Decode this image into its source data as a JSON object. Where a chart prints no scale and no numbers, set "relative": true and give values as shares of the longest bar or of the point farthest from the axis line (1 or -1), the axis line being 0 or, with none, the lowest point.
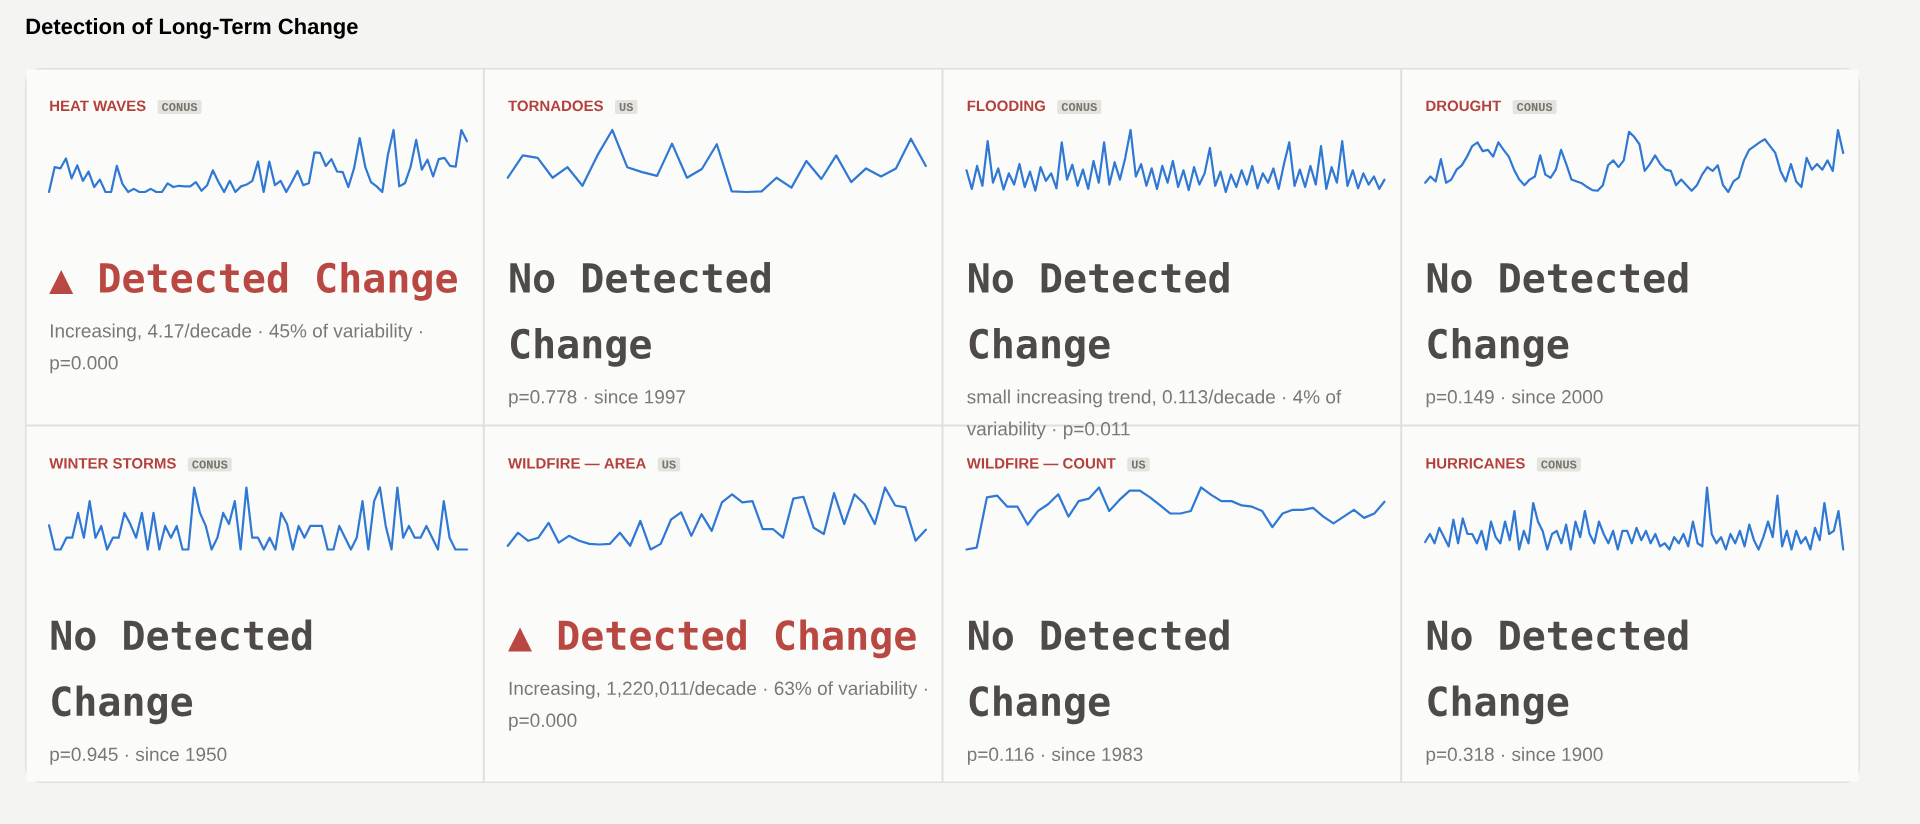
{
  "chart_data": [
    {
      "type": "other",
      "title": "Detection of Long-Term Change"
    },
    {
      "type": "line",
      "relative": true,
      "title": "HEAT WAVES",
      "subtitle": "CONUS",
      "color": "#2f78d3",
      "annotations": [
        "▲ Detected Change",
        "Increasing, 4.17/decade · 45% of variability · p=0.000"
      ],
      "categories": [
        null,
        null,
        null,
        null,
        null,
        null,
        null,
        null,
        null,
        null,
        null,
        null,
        null,
        null,
        null,
        null,
        null,
        null,
        null,
        null,
        null,
        null,
        null,
        null,
        null,
        null,
        null,
        null,
        null,
        null,
        null,
        null,
        null,
        null,
        null,
        null,
        null,
        null,
        null,
        null,
        null,
        null,
        null,
        null,
        null,
        null,
        null,
        null,
        null,
        null,
        null,
        null,
        null,
        null,
        null,
        null,
        null,
        null,
        null,
        null,
        null,
        null,
        null,
        null,
        null,
        null,
        null,
        null,
        null,
        null,
        null,
        null,
        null,
        null,
        null
      ],
      "values": [
        0,
        0.4,
        0.38,
        0.54,
        0.22,
        0.43,
        0.18,
        0.33,
        0.08,
        0.2,
        0,
        0,
        0.42,
        0.13,
        0,
        0.05,
        0,
        0,
        0.05,
        0,
        0,
        0.14,
        0.08,
        0.1,
        0.09,
        0.09,
        0.16,
        0.02,
        0.11,
        0.35,
        0.16,
        0,
        0.18,
        0,
        0.09,
        0.12,
        0.18,
        0.49,
        0,
        0.49,
        0.11,
        0.18,
        0,
        0.16,
        0.34,
        0.11,
        0.14,
        0.64,
        0.63,
        0.42,
        0.53,
        0.33,
        0.32,
        0.08,
        0.38,
        0.87,
        0.4,
        0.16,
        0.09,
        0,
        0.6,
        1,
        0.09,
        0.14,
        0.4,
        0.84,
        0.36,
        0.52,
        0.25,
        0.53,
        0.55,
        0.42,
        0.41,
        1,
        0.82
      ]
    },
    {
      "type": "line",
      "relative": true,
      "title": "TORNADOES",
      "subtitle": "US",
      "color": "#2f78d3",
      "annotations": [
        "No Detected Change",
        "p=0.778 · since 1997"
      ],
      "categories": [
        null,
        null,
        null,
        null,
        null,
        null,
        null,
        null,
        null,
        null,
        null,
        null,
        null,
        null,
        null,
        null,
        null,
        null,
        null,
        null,
        null,
        null,
        null,
        null,
        null,
        null,
        null,
        null,
        null
      ],
      "values": [
        0.23,
        0.59,
        0.55,
        0.23,
        0.4,
        0.1,
        0.59,
        1,
        0.4,
        0.32,
        0.26,
        0.78,
        0.23,
        0.37,
        0.77,
        0.01,
        0,
        0.01,
        0.23,
        0.07,
        0.5,
        0.21,
        0.59,
        0.16,
        0.38,
        0.25,
        0.38,
        0.86,
        0.42
      ]
    },
    {
      "type": "line",
      "relative": true,
      "title": "FLOODING",
      "subtitle": "CONUS",
      "color": "#2f78d3",
      "annotations": [
        "No Detected Change",
        "small increasing trend, 0.113/decade · 4% of variability · p=0.011"
      ],
      "categories": [
        null,
        null,
        null,
        null,
        null,
        null,
        null,
        null,
        null,
        null,
        null,
        null,
        null,
        null,
        null,
        null,
        null,
        null,
        null,
        null,
        null,
        null,
        null,
        null,
        null,
        null,
        null,
        null,
        null,
        null,
        null,
        null,
        null,
        null,
        null,
        null,
        null,
        null,
        null,
        null,
        null,
        null,
        null,
        null,
        null,
        null,
        null,
        null,
        null,
        null,
        null,
        null,
        null,
        null,
        null,
        null,
        null,
        null,
        null,
        null,
        null,
        null,
        null,
        null,
        null,
        null,
        null,
        null,
        null,
        null,
        null,
        null,
        null,
        null,
        null,
        null,
        null,
        null,
        null,
        null
      ],
      "values": [
        0.35,
        0.05,
        0.42,
        0.1,
        0.82,
        0.15,
        0.38,
        0.04,
        0.3,
        0.12,
        0.45,
        0.08,
        0.33,
        0.02,
        0.4,
        0.18,
        0.3,
        0.06,
        0.8,
        0.2,
        0.44,
        0.1,
        0.36,
        0.05,
        0.5,
        0.15,
        0.8,
        0.12,
        0.48,
        0.2,
        0.55,
        1,
        0.25,
        0.45,
        0.1,
        0.38,
        0.05,
        0.42,
        0.15,
        0.5,
        0.08,
        0.35,
        0.03,
        0.4,
        0.12,
        0.3,
        0.71,
        0.1,
        0.33,
        0,
        0.28,
        0.08,
        0.35,
        0.12,
        0.42,
        0.06,
        0.3,
        0.15,
        0.38,
        0.05,
        0.45,
        0.8,
        0.1,
        0.36,
        0.08,
        0.42,
        0.12,
        0.74,
        0.05,
        0.4,
        0.15,
        0.82,
        0.1,
        0.35,
        0.06,
        0.3,
        0.12,
        0.25,
        0.05,
        0.2
      ]
    },
    {
      "type": "line",
      "relative": true,
      "title": "DROUGHT",
      "subtitle": "CONUS",
      "color": "#2f78d3",
      "annotations": [
        "No Detected Change",
        "p=0.149 · since 2000"
      ],
      "categories": [
        null,
        null,
        null,
        null,
        null,
        null,
        null,
        null,
        null,
        null,
        null,
        null,
        null,
        null,
        null,
        null,
        null,
        null,
        null,
        null,
        null,
        null,
        null,
        null,
        null,
        null,
        null,
        null,
        null,
        null,
        null,
        null,
        null,
        null,
        null,
        null,
        null,
        null,
        null,
        null,
        null,
        null,
        null,
        null,
        null,
        null,
        null,
        null,
        null,
        null,
        null,
        null,
        null,
        null,
        null,
        null,
        null,
        null,
        null,
        null,
        null,
        null,
        null,
        null,
        null,
        null,
        null,
        null,
        null,
        null,
        null,
        null,
        null,
        null,
        null,
        null,
        null,
        null,
        null,
        null,
        null
      ],
      "values": [
        0.15,
        0.25,
        0.17,
        0.53,
        0.15,
        0.2,
        0.36,
        0.43,
        0.57,
        0.74,
        0.8,
        0.66,
        0.68,
        0.57,
        0.8,
        0.68,
        0.57,
        0.36,
        0.2,
        0.11,
        0.2,
        0.25,
        0.59,
        0.28,
        0.23,
        0.36,
        0.68,
        0.45,
        0.2,
        0.17,
        0.14,
        0.08,
        0.03,
        0.02,
        0.11,
        0.43,
        0.51,
        0.4,
        0.51,
        0.97,
        0.89,
        0.77,
        0.34,
        0.45,
        0.59,
        0.45,
        0.36,
        0.34,
        0.11,
        0.2,
        0.11,
        0.02,
        0.11,
        0.28,
        0.4,
        0.34,
        0.43,
        0.11,
        0,
        0.17,
        0.23,
        0.51,
        0.68,
        0.74,
        0.8,
        0.85,
        0.74,
        0.63,
        0.34,
        0.17,
        0.45,
        0.17,
        0.08,
        0.55,
        0.36,
        0.45,
        0.36,
        0.51,
        0.34,
        1,
        0.63
      ]
    },
    {
      "type": "line",
      "relative": true,
      "title": "WINTER STORMS",
      "subtitle": "CONUS",
      "color": "#2f78d3",
      "annotations": [
        "No Detected Change",
        "p=0.945 · since 1950"
      ],
      "categories": [
        null,
        null,
        null,
        null,
        null,
        null,
        null,
        null,
        null,
        null,
        null,
        null,
        null,
        null,
        null,
        null,
        null,
        null,
        null,
        null,
        null,
        null,
        null,
        null,
        null,
        null,
        null,
        null,
        null,
        null,
        null,
        null,
        null,
        null,
        null,
        null,
        null,
        null,
        null,
        null,
        null,
        null,
        null,
        null,
        null,
        null,
        null,
        null,
        null,
        null,
        null,
        null,
        null,
        null,
        null,
        null,
        null,
        null,
        null,
        null,
        null,
        null,
        null,
        null,
        null,
        null,
        null,
        null,
        null,
        null,
        null,
        null,
        null
      ],
      "values": [
        0.39,
        0,
        0,
        0.19,
        0.19,
        0.59,
        0.19,
        0.78,
        0.19,
        0.38,
        0,
        0.19,
        0.19,
        0.59,
        0.41,
        0.19,
        0.59,
        0,
        0.59,
        0,
        0.38,
        0.19,
        0.38,
        0,
        0,
        1,
        0.59,
        0.38,
        0,
        0.19,
        0.59,
        0.41,
        0.78,
        0,
        1,
        0.19,
        0.19,
        0,
        0.19,
        0,
        0.59,
        0.41,
        0,
        0.38,
        0.19,
        0.38,
        0.38,
        0.38,
        0,
        0,
        0.38,
        0.19,
        0,
        0.19,
        0.78,
        0,
        0.78,
        1,
        0.38,
        0,
        1,
        0.19,
        0.38,
        0.19,
        0.19,
        0.38,
        0.19,
        0,
        0.78,
        0.19,
        0,
        0,
        0
      ]
    },
    {
      "type": "line",
      "relative": true,
      "title": "WILDFIRE — AREA",
      "subtitle": "US",
      "color": "#2f78d3",
      "annotations": [
        "▲ Detected Change",
        "Increasing, 1,220,011/decade · 63% of variability · p=0.000"
      ],
      "categories": [
        null,
        null,
        null,
        null,
        null,
        null,
        null,
        null,
        null,
        null,
        null,
        null,
        null,
        null,
        null,
        null,
        null,
        null,
        null,
        null,
        null,
        null,
        null,
        null,
        null,
        null,
        null,
        null,
        null,
        null,
        null,
        null,
        null,
        null,
        null,
        null,
        null,
        null,
        null,
        null,
        null,
        null
      ],
      "values": [
        0.06,
        0.27,
        0.14,
        0.19,
        0.43,
        0.11,
        0.22,
        0.14,
        0.09,
        0.08,
        0.09,
        0.27,
        0.06,
        0.46,
        0,
        0.09,
        0.48,
        0.6,
        0.22,
        0.57,
        0.3,
        0.76,
        0.89,
        0.76,
        0.78,
        0.33,
        0.33,
        0.19,
        0.82,
        0.85,
        0.35,
        0.25,
        0.91,
        0.41,
        0.89,
        0.73,
        0.41,
        1,
        0.71,
        0.68,
        0.14,
        0.32
      ]
    },
    {
      "type": "line",
      "relative": true,
      "title": "WILDFIRE — COUNT",
      "subtitle": "US",
      "color": "#2f78d3",
      "annotations": [
        "No Detected Change",
        "p=0.116 · since 1983"
      ],
      "categories": [
        null,
        null,
        null,
        null,
        null,
        null,
        null,
        null,
        null,
        null,
        null,
        null,
        null,
        null,
        null,
        null,
        null,
        null,
        null,
        null,
        null,
        null,
        null,
        null,
        null,
        null,
        null,
        null,
        null,
        null,
        null,
        null,
        null,
        null,
        null,
        null,
        null,
        null,
        null,
        null,
        null,
        null
      ],
      "values": [
        0,
        0.03,
        0.84,
        0.87,
        0.69,
        0.69,
        0.4,
        0.62,
        0.73,
        0.89,
        0.53,
        0.78,
        0.82,
        1,
        0.62,
        0.8,
        0.95,
        0.95,
        0.84,
        0.71,
        0.58,
        0.58,
        0.62,
        1,
        0.88,
        0.78,
        0.78,
        0.71,
        0.69,
        0.62,
        0.36,
        0.58,
        0.64,
        0.64,
        0.67,
        0.53,
        0.42,
        0.53,
        0.64,
        0.51,
        0.58,
        0.77
      ]
    },
    {
      "type": "line",
      "relative": true,
      "title": "HURRICANES",
      "subtitle": "CONUS",
      "color": "#2f78d3",
      "annotations": [
        "No Detected Change",
        "p=0.318 · since 1900"
      ],
      "categories": [
        null,
        null,
        null,
        null,
        null,
        null,
        null,
        null,
        null,
        null,
        null,
        null,
        null,
        null,
        null,
        null,
        null,
        null,
        null,
        null,
        null,
        null,
        null,
        null,
        null,
        null,
        null,
        null,
        null,
        null,
        null,
        null,
        null,
        null,
        null,
        null,
        null,
        null,
        null,
        null,
        null,
        null,
        null,
        null,
        null,
        null,
        null,
        null,
        null,
        null,
        null,
        null,
        null,
        null,
        null,
        null,
        null,
        null,
        null,
        null,
        null,
        null,
        null,
        null,
        null,
        null,
        null,
        null,
        null,
        null,
        null,
        null,
        null,
        null,
        null,
        null,
        null,
        null,
        null,
        null,
        null,
        null,
        null,
        null,
        null,
        null,
        null,
        null,
        null,
        null
      ],
      "values": [
        0.12,
        0.25,
        0.1,
        0.35,
        0.2,
        0.05,
        0.48,
        0.1,
        0.5,
        0.25,
        0.25,
        0.1,
        0.3,
        0,
        0.45,
        0.2,
        0.1,
        0.45,
        0.15,
        0.62,
        0,
        0.3,
        0.1,
        0.75,
        0.45,
        0.3,
        0,
        0.25,
        0.3,
        0.1,
        0.4,
        0,
        0.45,
        0.2,
        0.62,
        0.25,
        0.1,
        0.45,
        0.25,
        0.1,
        0.3,
        0,
        0.3,
        0.3,
        0.1,
        0.35,
        0.15,
        0.3,
        0.1,
        0.25,
        0.05,
        0.1,
        0,
        0.2,
        0.1,
        0.25,
        0.05,
        0.45,
        0.1,
        0.05,
        1,
        0.25,
        0.1,
        0.2,
        0,
        0.25,
        0.1,
        0.3,
        0.05,
        0.4,
        0.15,
        0,
        0.2,
        0.45,
        0.2,
        0.87,
        0.05,
        0.3,
        0,
        0.3,
        0.1,
        0.2,
        0,
        0.35,
        0.15,
        0.75,
        0.25,
        0.3,
        0.62,
        0
      ]
    }
  ]
}
